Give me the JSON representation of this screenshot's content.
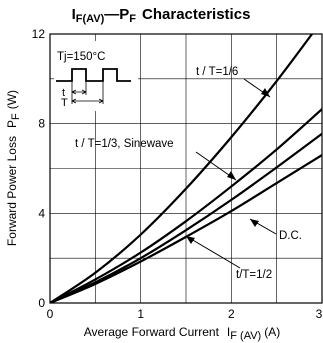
{
  "chart_data": {
    "type": "line",
    "title": {
      "i": "I",
      "i_sub": "F(AV)",
      "dash": "—",
      "p": "P",
      "p_sub": "F",
      "rest": "Characteristics"
    },
    "xlabel": {
      "text": "Average Forward Current",
      "sym": "I",
      "sym_sub": "F (AV)",
      "unit": "(A)"
    },
    "ylabel": {
      "text": "Forward Power Loss",
      "sym": "P",
      "sym_sub": "F",
      "unit": "(W)"
    },
    "xlim": [
      0,
      3
    ],
    "ylim": [
      0,
      12
    ],
    "xticks": [
      0,
      1,
      2,
      3
    ],
    "xtick_labels": [
      "0",
      "1",
      "2",
      "3"
    ],
    "yticks": [
      0,
      4,
      8,
      12
    ],
    "ytick_labels": [
      "0",
      "4",
      "8",
      "12"
    ],
    "grid": true,
    "legend": "none",
    "inset": {
      "text": "Tj=150°C",
      "t_label": "t",
      "T_label": "T"
    },
    "series": [
      {
        "key": "s16",
        "name": "t / T=1/6",
        "x": [
          0,
          0.5,
          1,
          1.5,
          2,
          2.5,
          3
        ],
        "y": [
          0,
          1.35,
          3.05,
          5.1,
          7.4,
          9.9,
          12.6
        ]
      },
      {
        "key": "s13",
        "name": "t / T=1/3, Sinewave",
        "x": [
          0,
          0.5,
          1,
          1.5,
          2,
          2.5,
          3
        ],
        "y": [
          0,
          1.05,
          2.25,
          3.65,
          5.2,
          6.85,
          8.65
        ]
      },
      {
        "key": "sdc",
        "name": "D.C.",
        "x": [
          0,
          0.5,
          1,
          1.5,
          2,
          2.5,
          3
        ],
        "y": [
          0,
          0.85,
          1.85,
          2.95,
          4.1,
          5.35,
          6.6
        ]
      },
      {
        "key": "s12",
        "name": "t/T=1/2",
        "x": [
          0,
          0.5,
          1,
          1.5,
          2,
          2.5,
          3
        ],
        "y": [
          0,
          0.92,
          2.0,
          3.25,
          4.6,
          6.05,
          7.55
        ]
      }
    ]
  }
}
